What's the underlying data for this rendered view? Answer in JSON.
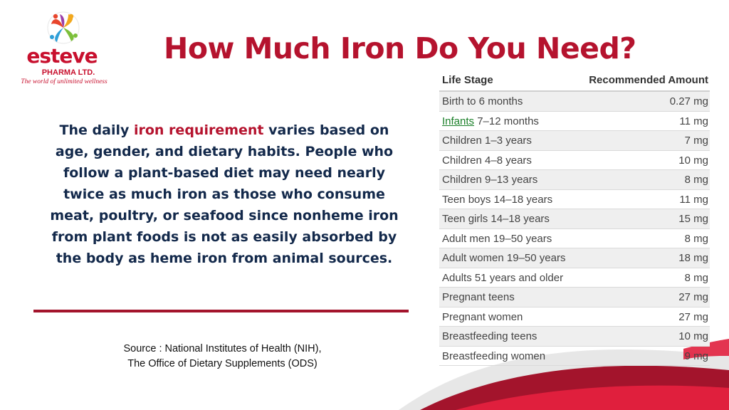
{
  "logo": {
    "brand": "esteve",
    "sub": "PHARMA LTD.",
    "tagline": "The world of unlimited wellness"
  },
  "title": "How Much Iron Do You Need?",
  "paragraph": {
    "before": "The daily ",
    "highlight": "iron requirement",
    "after": " varies based on age, gender, and dietary habits. People who follow a plant-based diet may need nearly twice as much iron as those who consume meat, poultry, or seafood since nonheme iron from plant foods is not as easily absorbed by the body as heme iron from animal sources."
  },
  "source": {
    "line1": "Source : National Institutes of Health (NIH),",
    "line2": "The Office of Dietary Supplements (ODS)"
  },
  "table": {
    "headers": [
      "Life Stage",
      "Recommended Amount"
    ],
    "infants_link": "Infants",
    "rows": [
      {
        "stage": "Birth to 6 months",
        "amount": "0.27 mg"
      },
      {
        "stage": " 7–12 months",
        "amount": "11 mg"
      },
      {
        "stage": "Children 1–3 years",
        "amount": "7 mg"
      },
      {
        "stage": "Children 4–8 years",
        "amount": "10 mg"
      },
      {
        "stage": "Children 9–13 years",
        "amount": "8 mg"
      },
      {
        "stage": "Teen boys 14–18 years",
        "amount": "11 mg"
      },
      {
        "stage": "Teen girls 14–18 years",
        "amount": "15 mg"
      },
      {
        "stage": "Adult men 19–50 years",
        "amount": "8 mg"
      },
      {
        "stage": "Adult women 19–50 years",
        "amount": "18 mg"
      },
      {
        "stage": "Adults 51 years and older",
        "amount": "8 mg"
      },
      {
        "stage": "Pregnant teens",
        "amount": "27 mg"
      },
      {
        "stage": "Pregnant women",
        "amount": "27 mg"
      },
      {
        "stage": "Breastfeeding teens",
        "amount": "10 mg"
      },
      {
        "stage": "Breastfeeding women",
        "amount": "9 mg"
      }
    ]
  },
  "colors": {
    "brand_red": "#b5132e",
    "navy": "#13294b",
    "link_green": "#1a7f28"
  }
}
